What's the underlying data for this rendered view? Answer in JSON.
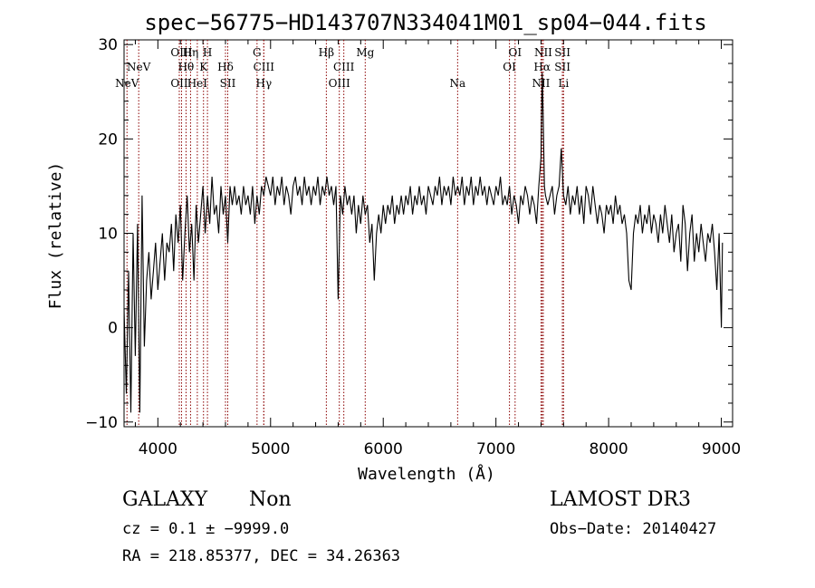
{
  "chart_data": {
    "type": "line",
    "title": "spec−56775−HD143707N334041M01_sp04−044.fits",
    "xlabel": "Wavelength (Å)",
    "ylabel": "Flux (relative)",
    "xlim": [
      3700,
      9100
    ],
    "ylim": [
      -10.5,
      30.5
    ],
    "xticks": [
      4000,
      5000,
      6000,
      7000,
      8000,
      9000
    ],
    "yticks": [
      -10,
      0,
      10,
      20,
      30
    ],
    "ytick_labels": [
      "−10",
      "0",
      "10",
      "20",
      "30"
    ],
    "series": [
      {
        "color": "#000000",
        "points": [
          [
            3700,
            2
          ],
          [
            3720,
            -7
          ],
          [
            3740,
            6
          ],
          [
            3760,
            -9
          ],
          [
            3780,
            10
          ],
          [
            3800,
            -3
          ],
          [
            3820,
            11
          ],
          [
            3840,
            -9
          ],
          [
            3860,
            14
          ],
          [
            3880,
            -2
          ],
          [
            3900,
            5
          ],
          [
            3920,
            8
          ],
          [
            3940,
            3
          ],
          [
            3960,
            6
          ],
          [
            3980,
            9
          ],
          [
            4000,
            4
          ],
          [
            4020,
            7
          ],
          [
            4040,
            10
          ],
          [
            4060,
            5
          ],
          [
            4080,
            9
          ],
          [
            4100,
            8
          ],
          [
            4120,
            11
          ],
          [
            4140,
            6
          ],
          [
            4160,
            12
          ],
          [
            4180,
            9
          ],
          [
            4200,
            13
          ],
          [
            4220,
            5
          ],
          [
            4240,
            10
          ],
          [
            4260,
            14
          ],
          [
            4280,
            8
          ],
          [
            4300,
            11
          ],
          [
            4320,
            5
          ],
          [
            4340,
            13
          ],
          [
            4360,
            9
          ],
          [
            4380,
            12
          ],
          [
            4400,
            15
          ],
          [
            4420,
            10
          ],
          [
            4440,
            14
          ],
          [
            4460,
            11
          ],
          [
            4480,
            16
          ],
          [
            4500,
            12
          ],
          [
            4520,
            13
          ],
          [
            4540,
            10
          ],
          [
            4560,
            15
          ],
          [
            4580,
            12
          ],
          [
            4600,
            14
          ],
          [
            4620,
            9
          ],
          [
            4640,
            15
          ],
          [
            4660,
            13
          ],
          [
            4680,
            15
          ],
          [
            4700,
            13
          ],
          [
            4720,
            14
          ],
          [
            4740,
            12
          ],
          [
            4760,
            15
          ],
          [
            4780,
            13
          ],
          [
            4800,
            14
          ],
          [
            4820,
            12
          ],
          [
            4840,
            15
          ],
          [
            4860,
            11
          ],
          [
            4880,
            14
          ],
          [
            4900,
            12
          ],
          [
            4920,
            15
          ],
          [
            4940,
            14
          ],
          [
            4960,
            16
          ],
          [
            4980,
            15
          ],
          [
            5000,
            14
          ],
          [
            5020,
            16
          ],
          [
            5040,
            13
          ],
          [
            5060,
            15
          ],
          [
            5080,
            14
          ],
          [
            5100,
            16
          ],
          [
            5120,
            13
          ],
          [
            5140,
            15
          ],
          [
            5160,
            14
          ],
          [
            5180,
            12
          ],
          [
            5200,
            15
          ],
          [
            5220,
            16
          ],
          [
            5240,
            14
          ],
          [
            5260,
            15
          ],
          [
            5280,
            13
          ],
          [
            5300,
            16
          ],
          [
            5320,
            14
          ],
          [
            5340,
            15
          ],
          [
            5360,
            13
          ],
          [
            5380,
            15
          ],
          [
            5400,
            14
          ],
          [
            5420,
            16
          ],
          [
            5440,
            13
          ],
          [
            5460,
            15
          ],
          [
            5480,
            14
          ],
          [
            5500,
            16
          ],
          [
            5520,
            14
          ],
          [
            5540,
            15
          ],
          [
            5560,
            13
          ],
          [
            5580,
            15
          ],
          [
            5600,
            3
          ],
          [
            5620,
            14
          ],
          [
            5640,
            12
          ],
          [
            5660,
            15
          ],
          [
            5680,
            13
          ],
          [
            5700,
            14
          ],
          [
            5720,
            12
          ],
          [
            5740,
            14
          ],
          [
            5760,
            10
          ],
          [
            5780,
            13
          ],
          [
            5800,
            11
          ],
          [
            5820,
            14
          ],
          [
            5840,
            12
          ],
          [
            5860,
            13
          ],
          [
            5880,
            9
          ],
          [
            5900,
            11
          ],
          [
            5920,
            5
          ],
          [
            5940,
            10
          ],
          [
            5960,
            12
          ],
          [
            5980,
            10
          ],
          [
            6000,
            13
          ],
          [
            6020,
            11
          ],
          [
            6040,
            13
          ],
          [
            6060,
            12
          ],
          [
            6080,
            14
          ],
          [
            6100,
            11
          ],
          [
            6120,
            13
          ],
          [
            6140,
            12
          ],
          [
            6160,
            14
          ],
          [
            6180,
            12
          ],
          [
            6200,
            14
          ],
          [
            6220,
            13
          ],
          [
            6240,
            15
          ],
          [
            6260,
            12
          ],
          [
            6280,
            14
          ],
          [
            6300,
            13
          ],
          [
            6320,
            15
          ],
          [
            6340,
            13
          ],
          [
            6360,
            14
          ],
          [
            6380,
            12
          ],
          [
            6400,
            15
          ],
          [
            6420,
            14
          ],
          [
            6440,
            13
          ],
          [
            6460,
            15
          ],
          [
            6480,
            14
          ],
          [
            6500,
            16
          ],
          [
            6520,
            13
          ],
          [
            6540,
            15
          ],
          [
            6560,
            14
          ],
          [
            6580,
            15
          ],
          [
            6600,
            13
          ],
          [
            6620,
            16
          ],
          [
            6640,
            14
          ],
          [
            6660,
            15
          ],
          [
            6680,
            14
          ],
          [
            6700,
            16
          ],
          [
            6720,
            13
          ],
          [
            6740,
            15
          ],
          [
            6760,
            14
          ],
          [
            6780,
            16
          ],
          [
            6800,
            13
          ],
          [
            6820,
            15
          ],
          [
            6840,
            14
          ],
          [
            6860,
            16
          ],
          [
            6880,
            14
          ],
          [
            6900,
            15
          ],
          [
            6920,
            13
          ],
          [
            6940,
            15
          ],
          [
            6960,
            14
          ],
          [
            6980,
            13
          ],
          [
            7000,
            15
          ],
          [
            7020,
            14
          ],
          [
            7040,
            16
          ],
          [
            7060,
            13
          ],
          [
            7080,
            14
          ],
          [
            7100,
            13
          ],
          [
            7120,
            15
          ],
          [
            7140,
            12
          ],
          [
            7160,
            14
          ],
          [
            7180,
            13
          ],
          [
            7200,
            11
          ],
          [
            7220,
            14
          ],
          [
            7240,
            13
          ],
          [
            7260,
            15
          ],
          [
            7280,
            14
          ],
          [
            7300,
            12
          ],
          [
            7320,
            14
          ],
          [
            7340,
            13
          ],
          [
            7360,
            11
          ],
          [
            7380,
            15
          ],
          [
            7400,
            18
          ],
          [
            7410,
            27
          ],
          [
            7420,
            22
          ],
          [
            7430,
            15
          ],
          [
            7440,
            14
          ],
          [
            7460,
            13
          ],
          [
            7480,
            14
          ],
          [
            7500,
            15
          ],
          [
            7520,
            12
          ],
          [
            7540,
            14
          ],
          [
            7560,
            15
          ],
          [
            7580,
            19
          ],
          [
            7600,
            14
          ],
          [
            7620,
            13
          ],
          [
            7640,
            15
          ],
          [
            7660,
            12
          ],
          [
            7680,
            14
          ],
          [
            7700,
            13
          ],
          [
            7720,
            15
          ],
          [
            7740,
            12
          ],
          [
            7760,
            14
          ],
          [
            7780,
            11
          ],
          [
            7800,
            15
          ],
          [
            7820,
            14
          ],
          [
            7840,
            12
          ],
          [
            7860,
            15
          ],
          [
            7880,
            13
          ],
          [
            7900,
            11
          ],
          [
            7920,
            13
          ],
          [
            7940,
            12
          ],
          [
            7960,
            10
          ],
          [
            7980,
            13
          ],
          [
            8000,
            12
          ],
          [
            8020,
            13
          ],
          [
            8040,
            11
          ],
          [
            8060,
            14
          ],
          [
            8080,
            12
          ],
          [
            8100,
            13
          ],
          [
            8120,
            11
          ],
          [
            8140,
            12
          ],
          [
            8160,
            10
          ],
          [
            8180,
            5
          ],
          [
            8200,
            4
          ],
          [
            8220,
            10
          ],
          [
            8240,
            12
          ],
          [
            8260,
            11
          ],
          [
            8280,
            13
          ],
          [
            8300,
            10
          ],
          [
            8320,
            12
          ],
          [
            8340,
            11
          ],
          [
            8360,
            13
          ],
          [
            8380,
            10
          ],
          [
            8400,
            12
          ],
          [
            8420,
            11
          ],
          [
            8440,
            9
          ],
          [
            8460,
            12
          ],
          [
            8480,
            10
          ],
          [
            8500,
            13
          ],
          [
            8520,
            11
          ],
          [
            8540,
            9
          ],
          [
            8560,
            12
          ],
          [
            8580,
            8
          ],
          [
            8600,
            10
          ],
          [
            8620,
            11
          ],
          [
            8640,
            7
          ],
          [
            8660,
            13
          ],
          [
            8680,
            11
          ],
          [
            8700,
            6
          ],
          [
            8720,
            10
          ],
          [
            8740,
            12
          ],
          [
            8760,
            7
          ],
          [
            8780,
            10
          ],
          [
            8800,
            8
          ],
          [
            8820,
            11
          ],
          [
            8840,
            9
          ],
          [
            8860,
            7
          ],
          [
            8880,
            10
          ],
          [
            8900,
            9
          ],
          [
            8920,
            11
          ],
          [
            8940,
            8
          ],
          [
            8960,
            4
          ],
          [
            8980,
            10
          ],
          [
            9000,
            0
          ],
          [
            9010,
            9
          ]
        ]
      }
    ],
    "emission_lines": [
      {
        "label": "NeV",
        "x": 3726,
        "row": 3
      },
      {
        "label": "NeV",
        "x": 3830,
        "row": 2
      },
      {
        "label": "OII",
        "x": 4190,
        "row": 3
      },
      {
        "label": "OIII",
        "x": 4210,
        "row": 1
      },
      {
        "label": "Hθ",
        "x": 4250,
        "row": 2
      },
      {
        "label": "Hη",
        "x": 4290,
        "row": 1
      },
      {
        "label": "HeI",
        "x": 4350,
        "row": 3
      },
      {
        "label": "H",
        "x": 4440,
        "row": 1
      },
      {
        "label": "K",
        "x": 4405,
        "row": 2
      },
      {
        "label": "Hδ",
        "x": 4600,
        "row": 2
      },
      {
        "label": "SII",
        "x": 4620,
        "row": 3
      },
      {
        "label": "G",
        "x": 4880,
        "row": 1
      },
      {
        "label": "CIII",
        "x": 4940,
        "row": 2
      },
      {
        "label": "Hγ",
        "x": 4940,
        "row": 3
      },
      {
        "label": "Hβ",
        "x": 5495,
        "row": 1
      },
      {
        "label": "CIII",
        "x": 5650,
        "row": 2
      },
      {
        "label": "OIII",
        "x": 5610,
        "row": 3
      },
      {
        "label": "Mg",
        "x": 5840,
        "row": 1
      },
      {
        "label": "Na",
        "x": 6660,
        "row": 3
      },
      {
        "label": "OI",
        "x": 7170,
        "row": 1
      },
      {
        "label": "OI",
        "x": 7120,
        "row": 2
      },
      {
        "label": "NII",
        "x": 7420,
        "row": 1
      },
      {
        "label": "Hα",
        "x": 7410,
        "row": 2
      },
      {
        "label": "NII",
        "x": 7400,
        "row": 3
      },
      {
        "label": "SII",
        "x": 7590,
        "row": 1
      },
      {
        "label": "SII",
        "x": 7590,
        "row": 2
      },
      {
        "label": "Li",
        "x": 7600,
        "row": 3
      }
    ],
    "line_marker_color": "#8b0000",
    "grid": false,
    "legend": "none"
  },
  "info": {
    "object_class": "GALAXY",
    "subclass": "Non",
    "survey": "LAMOST DR3",
    "redshift": "cz = 0.1 ± −9999.0",
    "obs_date": "Obs−Date: 20140427",
    "coords": "RA = 218.85377, DEC =  34.26363"
  }
}
